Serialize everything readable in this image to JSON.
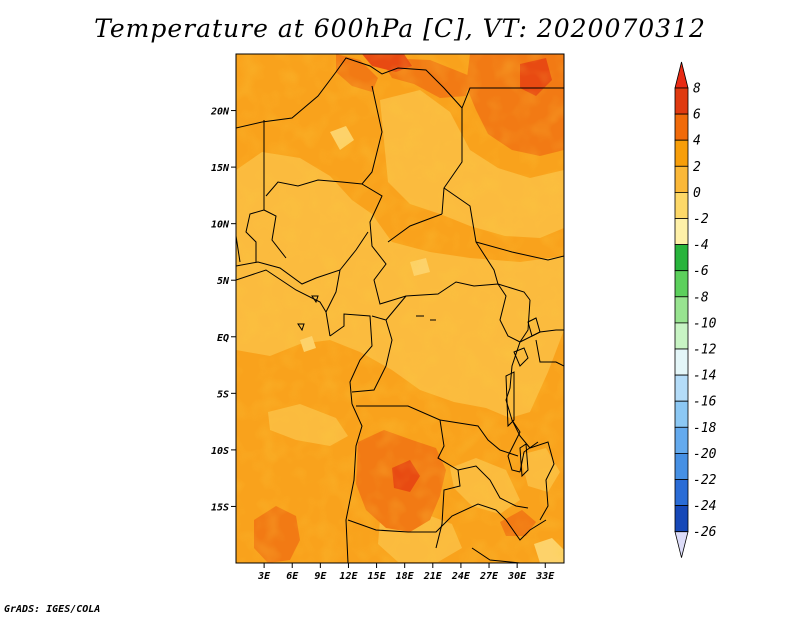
{
  "title": "Temperature at 600hPa [C], VT: 2020070312",
  "credit": "GrADS: IGES/COLA",
  "map": {
    "type": "filled-contour-map",
    "lon_range": [
      0,
      35
    ],
    "lat_range": [
      -20,
      25
    ],
    "lat_ticks": [
      {
        "value": 20,
        "label": "20N"
      },
      {
        "value": 15,
        "label": "15N"
      },
      {
        "value": 10,
        "label": "10N"
      },
      {
        "value": 5,
        "label": "5N"
      },
      {
        "value": 0,
        "label": "EQ"
      },
      {
        "value": -5,
        "label": "5S"
      },
      {
        "value": -10,
        "label": "10S"
      },
      {
        "value": -15,
        "label": "15S"
      }
    ],
    "lon_ticks": [
      {
        "value": 3,
        "label": "3E"
      },
      {
        "value": 6,
        "label": "6E"
      },
      {
        "value": 9,
        "label": "9E"
      },
      {
        "value": 12,
        "label": "12E"
      },
      {
        "value": 15,
        "label": "15E"
      },
      {
        "value": 18,
        "label": "18E"
      },
      {
        "value": 21,
        "label": "21E"
      },
      {
        "value": 24,
        "label": "24E"
      },
      {
        "value": 27,
        "label": "27E"
      },
      {
        "value": 30,
        "label": "30E"
      },
      {
        "value": 33,
        "label": "33E"
      }
    ]
  },
  "colorbar": {
    "levels": [
      "8",
      "6",
      "4",
      "2",
      "0",
      "-2",
      "-4",
      "-6",
      "-8",
      "-10",
      "-12",
      "-14",
      "-16",
      "-18",
      "-20",
      "-22",
      "-24",
      "-26"
    ],
    "colors": [
      "#e03a10",
      "#f06a0a",
      "#f79e0a",
      "#fbb838",
      "#fdd868",
      "#fef0a8",
      "#28b43c",
      "#5cd05c",
      "#98e490",
      "#c8f4c4",
      "#e4f6f8",
      "#b4dcf8",
      "#8cc8f4",
      "#64aaee",
      "#4690e4",
      "#2a6cd6",
      "#1648b8",
      "#0a1e8c"
    ],
    "top_color": "#e82a14",
    "bottom_color": "#dcdcf8"
  }
}
